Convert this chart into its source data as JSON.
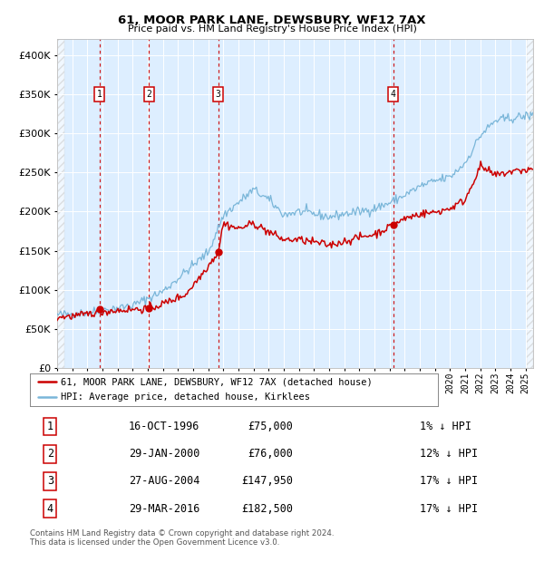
{
  "title": "61, MOOR PARK LANE, DEWSBURY, WF12 7AX",
  "subtitle": "Price paid vs. HM Land Registry's House Price Index (HPI)",
  "footer": "Contains HM Land Registry data © Crown copyright and database right 2024.\nThis data is licensed under the Open Government Licence v3.0.",
  "legend_line1": "61, MOOR PARK LANE, DEWSBURY, WF12 7AX (detached house)",
  "legend_line2": "HPI: Average price, detached house, Kirklees",
  "ylim": [
    0,
    420000
  ],
  "yticks": [
    0,
    50000,
    100000,
    150000,
    200000,
    250000,
    300000,
    350000,
    400000
  ],
  "hpi_color": "#7ab6d9",
  "price_color": "#cc0000",
  "marker_color": "#cc0000",
  "dashed_line_color": "#cc0000",
  "bg_color": "#ddeeff",
  "sale_events": [
    {
      "num": 1,
      "year": 1996.79,
      "price": 75000,
      "label": "16-OCT-1996",
      "pct": "1%"
    },
    {
      "num": 2,
      "year": 2000.08,
      "price": 76000,
      "label": "29-JAN-2000",
      "pct": "12%"
    },
    {
      "num": 3,
      "year": 2004.65,
      "price": 147950,
      "label": "27-AUG-2004",
      "pct": "17%"
    },
    {
      "num": 4,
      "year": 2016.24,
      "price": 182500,
      "label": "29-MAR-2016",
      "pct": "17%"
    }
  ],
  "xmin": 1994.0,
  "xmax": 2025.5,
  "hpi_anchors_x": [
    1994,
    1996,
    1997,
    1999,
    2001,
    2004,
    2005,
    2007,
    2008,
    2009,
    2010,
    2011,
    2012,
    2013,
    2014,
    2015,
    2016,
    2017,
    2018,
    2019,
    2020,
    2021,
    2022,
    2023,
    2024,
    2025.4
  ],
  "hpi_anchors_y": [
    68000,
    71000,
    74000,
    80000,
    98000,
    148000,
    195000,
    228000,
    215000,
    196000,
    200000,
    197000,
    193000,
    197000,
    200000,
    204000,
    211000,
    221000,
    232000,
    239000,
    244000,
    262000,
    297000,
    316000,
    319000,
    323000
  ],
  "pp_anchors_x": [
    1994,
    1995.5,
    1996.5,
    1997.5,
    1999,
    2000.08,
    2001,
    2002.5,
    2003.5,
    2004.65,
    2005,
    2006,
    2007,
    2008,
    2009,
    2010,
    2011,
    2012,
    2013,
    2014,
    2015,
    2016.24,
    2017,
    2018,
    2019,
    2020,
    2021,
    2022,
    2023,
    2024,
    2025.4
  ],
  "pp_anchors_y": [
    65000,
    67000,
    71000,
    73000,
    75000,
    76000,
    82000,
    94000,
    118000,
    147950,
    185000,
    178000,
    185000,
    174000,
    164000,
    164000,
    161000,
    157000,
    162000,
    167000,
    171000,
    182500,
    191000,
    197000,
    199000,
    204000,
    215000,
    258000,
    246000,
    251000,
    254000
  ]
}
